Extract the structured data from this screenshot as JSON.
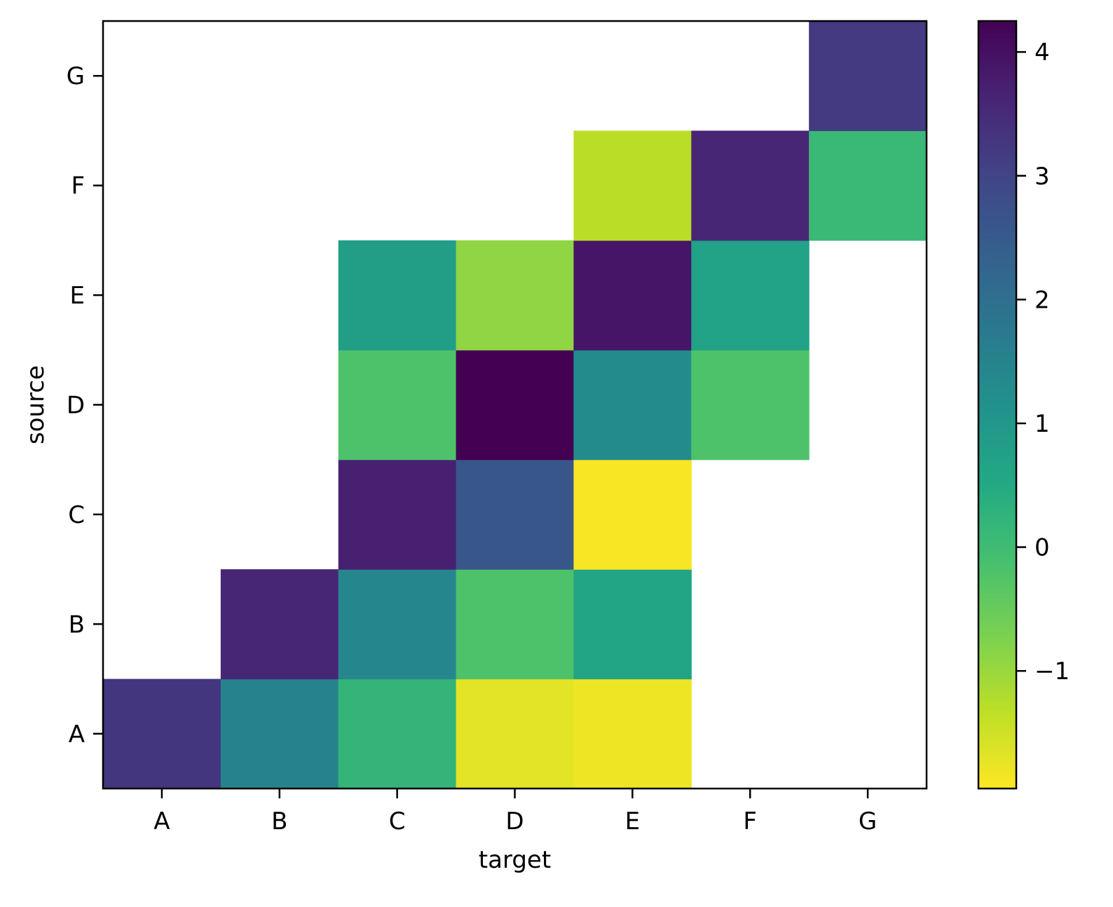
{
  "chart_data": {
    "type": "heatmap",
    "xlabel": "target",
    "ylabel": "source",
    "x_categories": [
      "A",
      "B",
      "C",
      "D",
      "E",
      "F",
      "G"
    ],
    "y_categories": [
      "A",
      "B",
      "C",
      "D",
      "E",
      "F",
      "G"
    ],
    "cells": [
      {
        "source": "A",
        "target": "A",
        "value": 3.3
      },
      {
        "source": "A",
        "target": "B",
        "value": 1.5
      },
      {
        "source": "A",
        "target": "C",
        "value": 0.2
      },
      {
        "source": "A",
        "target": "D",
        "value": -1.7
      },
      {
        "source": "A",
        "target": "E",
        "value": -1.8
      },
      {
        "source": "B",
        "target": "B",
        "value": 3.6
      },
      {
        "source": "B",
        "target": "C",
        "value": 1.4
      },
      {
        "source": "B",
        "target": "D",
        "value": -0.2
      },
      {
        "source": "B",
        "target": "E",
        "value": 0.6
      },
      {
        "source": "C",
        "target": "C",
        "value": 3.7
      },
      {
        "source": "C",
        "target": "D",
        "value": 2.6
      },
      {
        "source": "C",
        "target": "E",
        "value": -1.9
      },
      {
        "source": "D",
        "target": "C",
        "value": -0.2
      },
      {
        "source": "D",
        "target": "D",
        "value": 4.25
      },
      {
        "source": "D",
        "target": "E",
        "value": 1.3
      },
      {
        "source": "D",
        "target": "F",
        "value": -0.2
      },
      {
        "source": "E",
        "target": "C",
        "value": 0.8
      },
      {
        "source": "E",
        "target": "D",
        "value": -0.9
      },
      {
        "source": "E",
        "target": "E",
        "value": 3.9
      },
      {
        "source": "E",
        "target": "F",
        "value": 0.7
      },
      {
        "source": "F",
        "target": "E",
        "value": -1.3
      },
      {
        "source": "F",
        "target": "F",
        "value": 3.6
      },
      {
        "source": "F",
        "target": "G",
        "value": 0.1
      },
      {
        "source": "G",
        "target": "G",
        "value": 3.2
      }
    ],
    "colorbar": {
      "colormap": "viridis_r",
      "vmin": -1.95,
      "vmax": 4.25,
      "ticks": [
        -1,
        0,
        1,
        2,
        3,
        4
      ],
      "tick_labels": [
        "−1",
        "0",
        "1",
        "2",
        "3",
        "4"
      ]
    },
    "grid": false,
    "legend": "colorbar-right"
  }
}
